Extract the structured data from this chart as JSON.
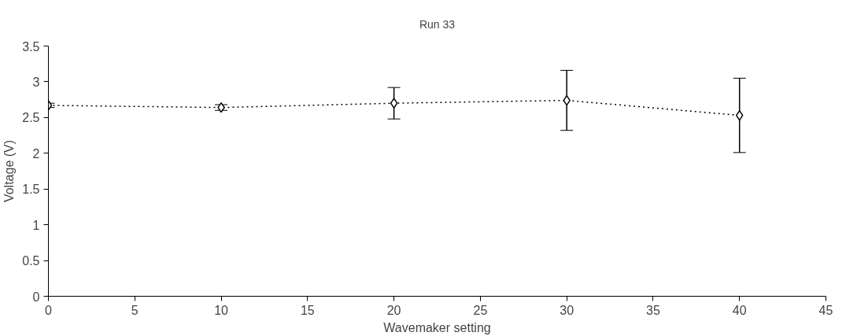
{
  "chart_data": {
    "type": "line",
    "title": "Run 33",
    "xlabel": "Wavemaker setting",
    "ylabel": "Voltage (V)",
    "x": [
      0,
      10,
      20,
      30,
      40
    ],
    "series": [
      {
        "color": "#000000",
        "values": [
          2.67,
          2.64,
          2.7,
          2.74,
          2.53
        ],
        "errors": [
          0.03,
          0.04,
          0.22,
          0.42,
          0.52
        ]
      }
    ],
    "xlim": [
      0,
      45
    ],
    "xticks": [
      0,
      5,
      10,
      15,
      20,
      25,
      30,
      35,
      40,
      45
    ],
    "ylim": [
      0,
      3.5
    ],
    "yticks": [
      0,
      0.5,
      1,
      1.5,
      2,
      2.5,
      3,
      3.5
    ],
    "grid": false,
    "marker": "diamond",
    "line_style": "dotted"
  }
}
